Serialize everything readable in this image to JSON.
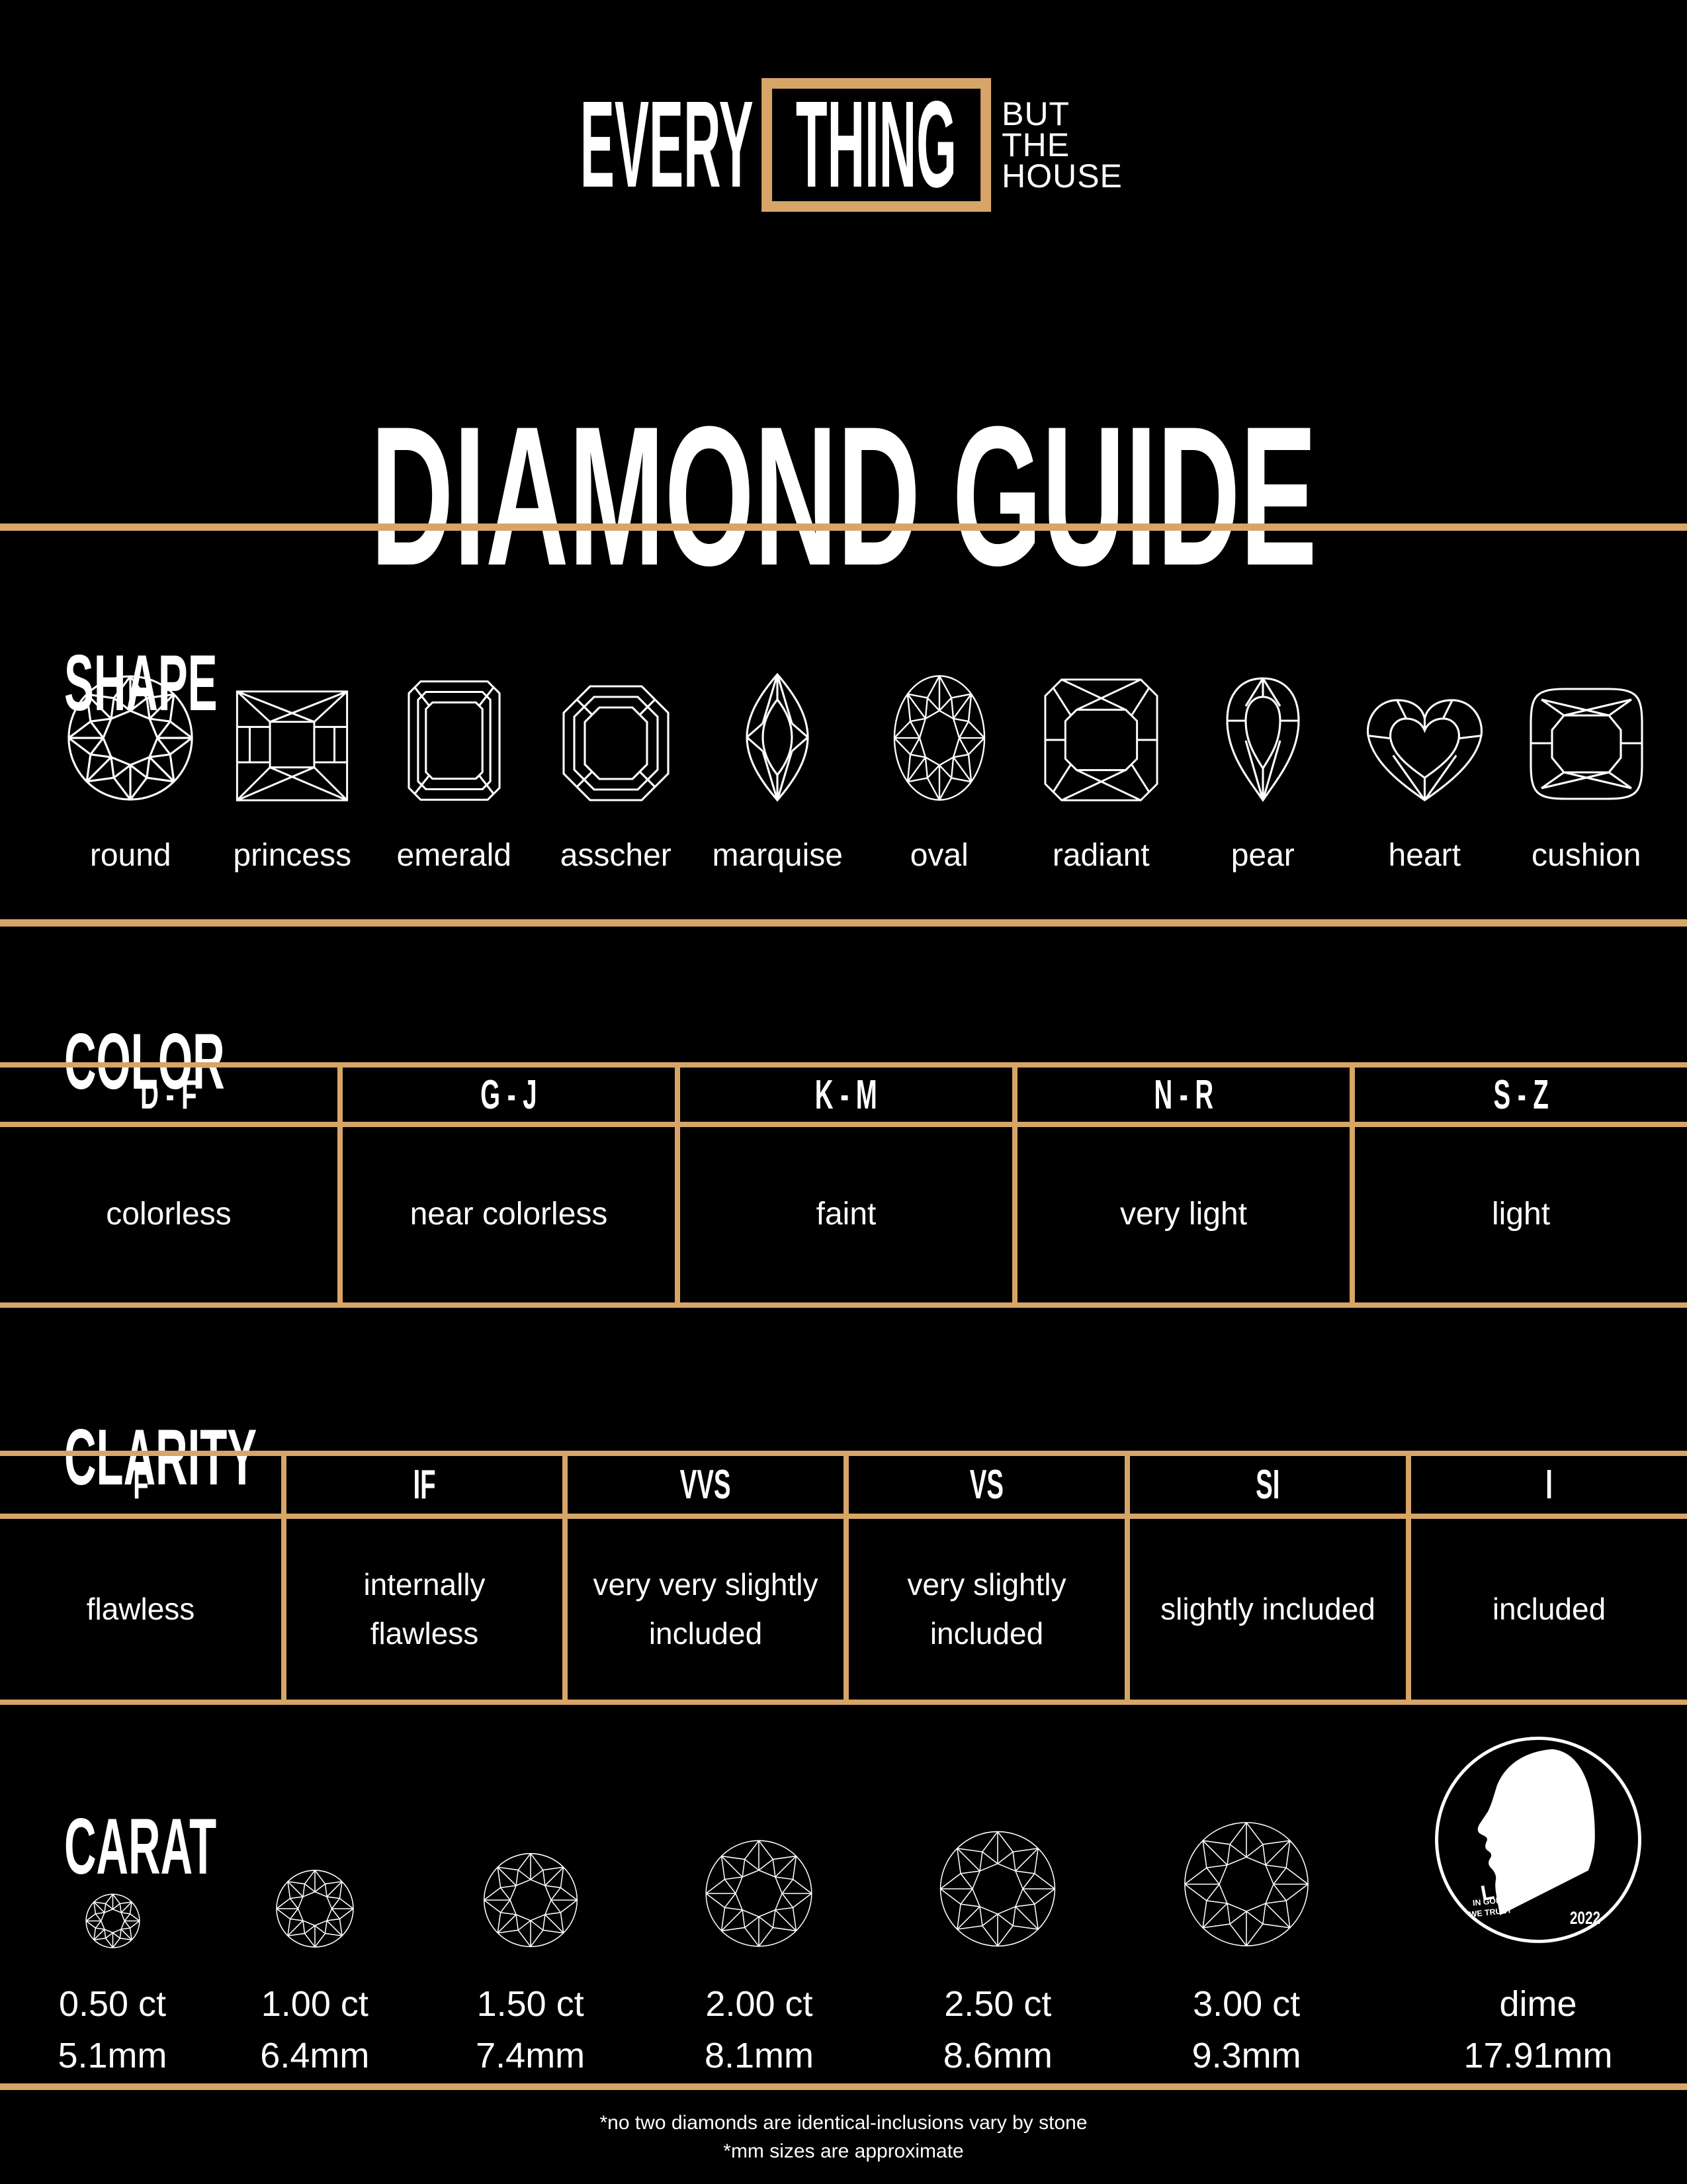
{
  "colors": {
    "background": "#000000",
    "gold": "#d6a567",
    "text": "#ffffff"
  },
  "brand": {
    "word_left": "EVERY",
    "word_boxed": "THING",
    "tagline_lines": [
      "BUT",
      "THE",
      "HOUSE"
    ]
  },
  "title": "DIAMOND GUIDE",
  "sections": {
    "shape": {
      "heading": "SHAPE",
      "shapes": [
        "round",
        "princess",
        "emerald",
        "asscher",
        "marquise",
        "oval",
        "radiant",
        "pear",
        "heart",
        "cushion"
      ]
    },
    "color": {
      "heading": "COLOR",
      "grades": [
        {
          "range": "D - F",
          "description": "colorless"
        },
        {
          "range": "G - J",
          "description": "near colorless"
        },
        {
          "range": "K - M",
          "description": "faint"
        },
        {
          "range": "N - R",
          "description": "very light"
        },
        {
          "range": "S - Z",
          "description": "light"
        }
      ]
    },
    "clarity": {
      "heading": "CLARITY",
      "grades": [
        {
          "code": "F",
          "description": "flawless"
        },
        {
          "code": "IF",
          "description": "internally flawless"
        },
        {
          "code": "VVS",
          "description": "very very slightly included"
        },
        {
          "code": "VS",
          "description": "very slightly included"
        },
        {
          "code": "SI",
          "description": "slightly included"
        },
        {
          "code": "I",
          "description": "included"
        }
      ]
    },
    "carat": {
      "heading": "CARAT",
      "items": [
        {
          "carat": "0.50 ct",
          "diameter": "5.1mm"
        },
        {
          "carat": "1.00 ct",
          "diameter": "6.4mm"
        },
        {
          "carat": "1.50 ct",
          "diameter": "7.4mm"
        },
        {
          "carat": "2.00 ct",
          "diameter": "8.1mm"
        },
        {
          "carat": "2.50 ct",
          "diameter": "8.6mm"
        },
        {
          "carat": "3.00 ct",
          "diameter": "9.3mm"
        },
        {
          "carat": "dime",
          "diameter": "17.91mm"
        }
      ]
    }
  },
  "dime_coin": {
    "legend": "LIBERTY",
    "motto_line1": "IN GOD",
    "motto_line2": "WE TRUST",
    "year": "2022"
  },
  "footnotes": [
    "*no two diamonds are identical-inclusions vary by stone",
    "*mm sizes are approximate"
  ]
}
